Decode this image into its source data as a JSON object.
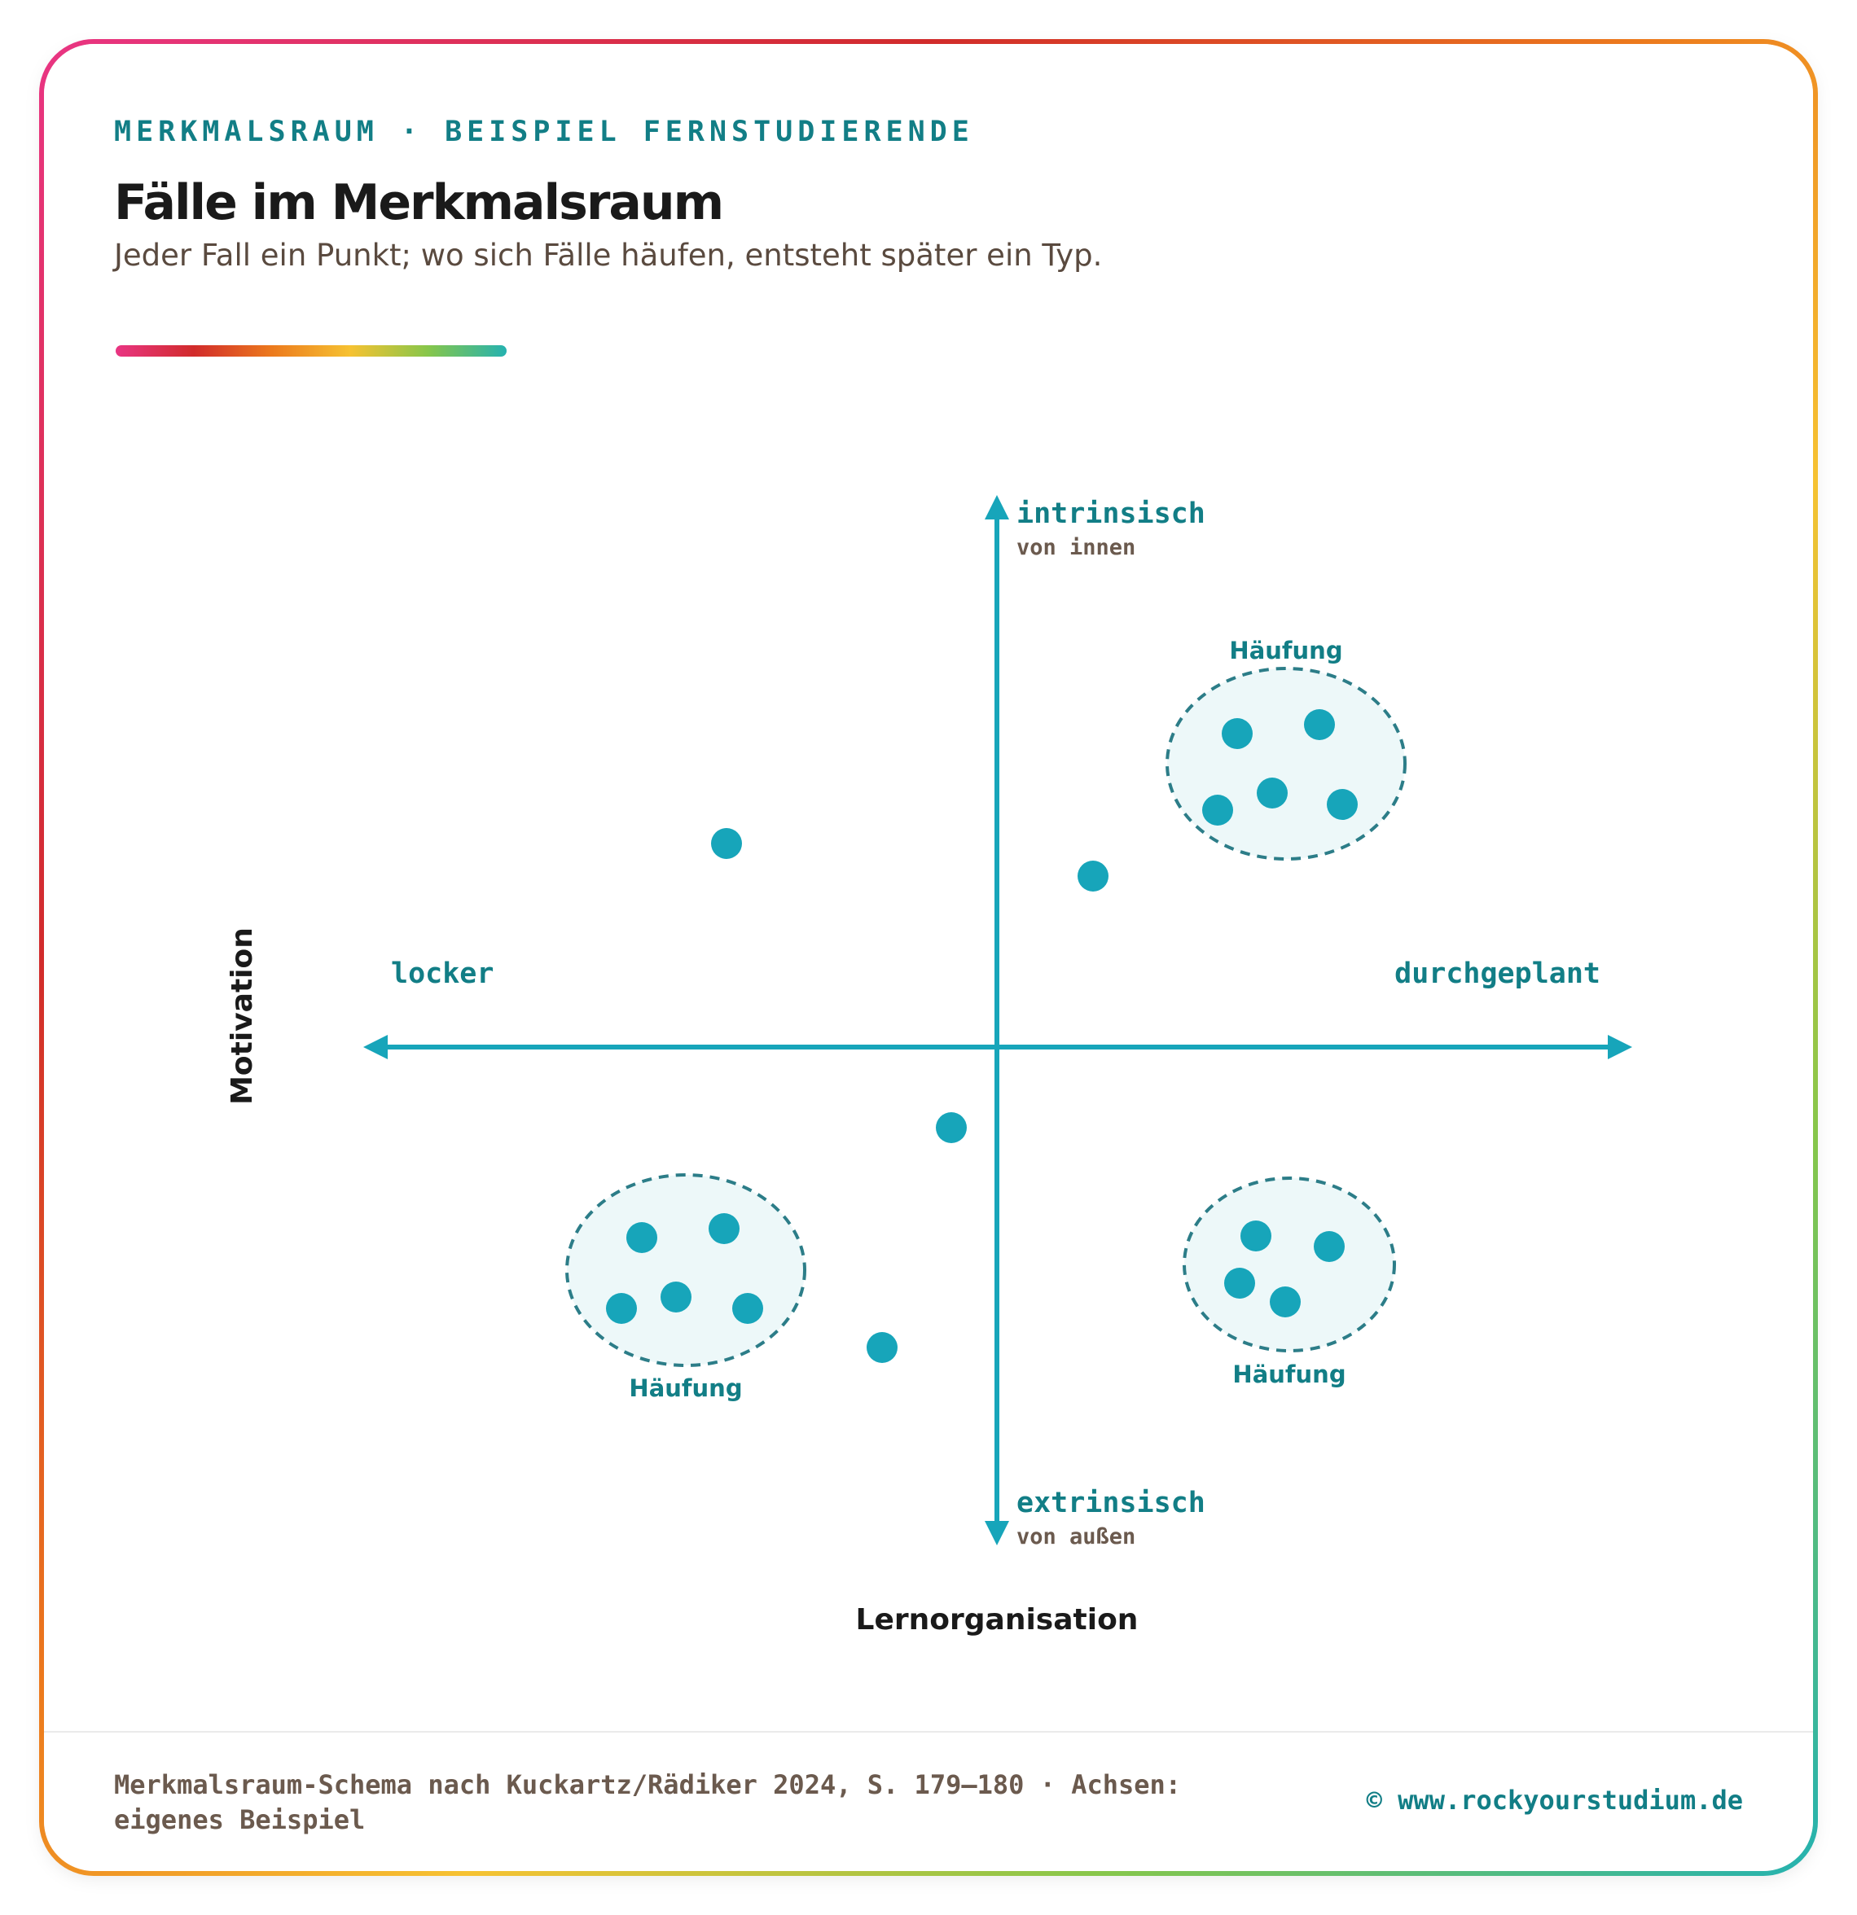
{
  "header": {
    "eyebrow": "MERKMALSRAUM · BEISPIEL FERNSTUDIERENDE",
    "title": "Fälle im Merkmalsraum",
    "subtitle": "Jeder Fall ein Punkt; wo sich Fälle häufen, entsteht später ein Typ."
  },
  "diagram": {
    "x_axis_label": "Lernorganisation",
    "y_axis_label": "Motivation",
    "x_left": "locker",
    "x_right": "durchgeplant",
    "y_top": "intrinsisch",
    "y_top_sub": "von innen",
    "y_bottom": "extrinsisch",
    "y_bottom_sub": "von außen",
    "cluster_label": "Häufung",
    "cluster_top_right": "Häufung",
    "cluster_bottom_left": "Häufung",
    "cluster_bottom_right": "Häufung"
  },
  "footer": {
    "source": "Merkmalsraum-Schema nach Kuckartz/Rädiker 2024, S. 179–180 · Achsen: eigenes Beispiel",
    "copyright": "© www.rockyourstudium.de"
  },
  "colors": {
    "teal": "#17a5ba",
    "teal_dark": "#127e86",
    "cluster_fill": "#edf8f9",
    "frame_gradient": [
      "#e93583",
      "#d12b2b",
      "#ec7a1d",
      "#f6c232",
      "#86c64b",
      "#25b2b0"
    ]
  }
}
